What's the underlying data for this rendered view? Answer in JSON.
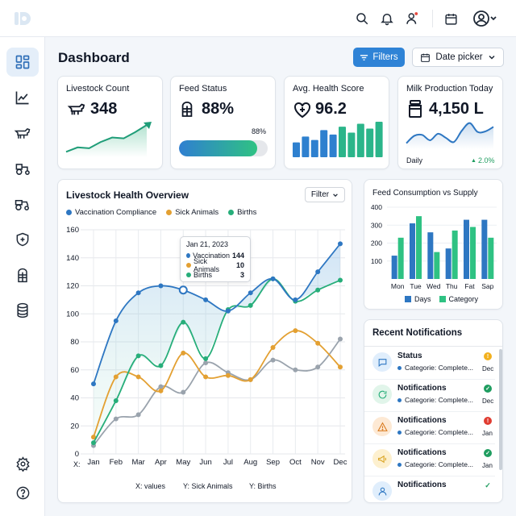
{
  "header": {
    "title": "Dashboard"
  },
  "toolbar": {
    "filters_label": "Filters",
    "date_label": "Date picker"
  },
  "kpis": {
    "livestock": {
      "label": "Livestock Count",
      "value": "348"
    },
    "feed": {
      "label": "Feed Status",
      "value": "88%",
      "bar_label": "88%",
      "progress": 0.88
    },
    "health": {
      "label": "Avg. Health Score",
      "value": "96.2"
    },
    "milk": {
      "label": "Milk Production Today",
      "value": "4,150 L",
      "period": "Daily",
      "change": "2.0%"
    }
  },
  "health_overview": {
    "title": "Livestock Health Overview",
    "filter_label": "Filter",
    "tooltip": {
      "date": "Jan 21, 2023",
      "rows": [
        {
          "label": "Vaccination",
          "value": "144"
        },
        {
          "label": "Sick Animals",
          "value": "10"
        },
        {
          "label": "Births",
          "value": "3"
        }
      ]
    },
    "x_prefix": "X:",
    "bottom_labels": [
      "X: values",
      "Y: Sick Animals",
      "Y: Births"
    ]
  },
  "feed_chart": {
    "title": "Feed Consumption vs Supply"
  },
  "notifications": {
    "title": "Recent Notifications",
    "items": [
      {
        "title": "Status",
        "sub": "Categorie: Complete...",
        "time": "Dec",
        "icon": "chat-icon",
        "status": "warning"
      },
      {
        "title": "Notifications",
        "sub": "Categorie: Complete...",
        "time": "Dec",
        "icon": "refresh-icon",
        "status": "ok"
      },
      {
        "title": "Notifications",
        "sub": "Categorie: Complete...",
        "time": "Jan",
        "icon": "alert-icon",
        "status": "error"
      },
      {
        "title": "Notifications",
        "sub": "Categorie: Complete...",
        "time": "Jan",
        "icon": "megaphone-icon",
        "status": "ok"
      },
      {
        "title": "Notifications",
        "sub": "Categorie: Complete...",
        "time": "",
        "icon": "user-icon",
        "status": "done"
      }
    ]
  },
  "sidebar": {
    "items": [
      {
        "icon": "dashboard-icon",
        "active": true
      },
      {
        "icon": "analytics-icon"
      },
      {
        "icon": "cow-icon"
      },
      {
        "icon": "tractor-icon"
      },
      {
        "icon": "tractor-alt-icon"
      },
      {
        "icon": "health-icon"
      },
      {
        "icon": "silo-icon"
      },
      {
        "icon": "database-icon"
      }
    ],
    "bottom": [
      {
        "icon": "settings-icon"
      },
      {
        "icon": "help-icon"
      }
    ]
  },
  "colors": {
    "accent": "#2f83d6",
    "blue": "#2e77c2",
    "teal": "#27ae7a",
    "orange": "#e3a032",
    "gray": "#9aa3ad"
  },
  "chart_data": [
    {
      "type": "line",
      "title": "Livestock Health Overview",
      "x": [
        "Jan",
        "Feb",
        "Mar",
        "Apr",
        "May",
        "Jun",
        "Jul",
        "Aug",
        "Sep",
        "Oct",
        "Nov",
        "Dec"
      ],
      "ylim": [
        0,
        160
      ],
      "yticks": [
        0,
        20,
        40,
        60,
        80,
        100,
        120,
        140,
        160
      ],
      "series": [
        {
          "name": "Vaccination Compliance",
          "color": "#2e77c2",
          "values": [
            50,
            95,
            115,
            120,
            117,
            110,
            102,
            115,
            125,
            110,
            130,
            150
          ]
        },
        {
          "name": "Sick Animals",
          "color": "#e3a032",
          "values": [
            12,
            55,
            55,
            45,
            72,
            55,
            56,
            53,
            76,
            88,
            79,
            62
          ]
        },
        {
          "name": "Births",
          "color": "#27ae7a",
          "values": [
            8,
            38,
            70,
            63,
            94,
            68,
            103,
            106,
            125,
            109,
            117,
            124
          ]
        },
        {
          "color": "#9aa3ad",
          "values": [
            6,
            25,
            28,
            48,
            44,
            65,
            58,
            53,
            67,
            60,
            62,
            82
          ]
        }
      ]
    },
    {
      "type": "bar",
      "title": "Feed Consumption vs Supply",
      "categories": [
        "Mon",
        "Tue",
        "Wed",
        "Thu",
        "Fat",
        "Sap"
      ],
      "ylim": [
        0,
        400
      ],
      "yticks": [
        100,
        200,
        300,
        400
      ],
      "series": [
        {
          "name": "Days",
          "color": "#2e77c2",
          "values": [
            130,
            310,
            260,
            170,
            330,
            330
          ]
        },
        {
          "name": "Category",
          "color": "#2fc283",
          "values": [
            230,
            350,
            150,
            270,
            290,
            230
          ]
        }
      ]
    },
    {
      "type": "line",
      "title": "Livestock Count",
      "values": [
        12,
        22,
        20,
        34,
        44,
        42,
        56,
        72
      ]
    },
    {
      "type": "bar",
      "title": "Avg. Health Score",
      "values": [
        30,
        42,
        35,
        55,
        46,
        62,
        50,
        68,
        58,
        72
      ]
    },
    {
      "type": "line",
      "title": "Milk Production Today",
      "values": [
        20,
        45,
        48,
        30,
        52,
        38,
        24,
        62,
        88,
        58,
        60,
        75
      ]
    }
  ]
}
